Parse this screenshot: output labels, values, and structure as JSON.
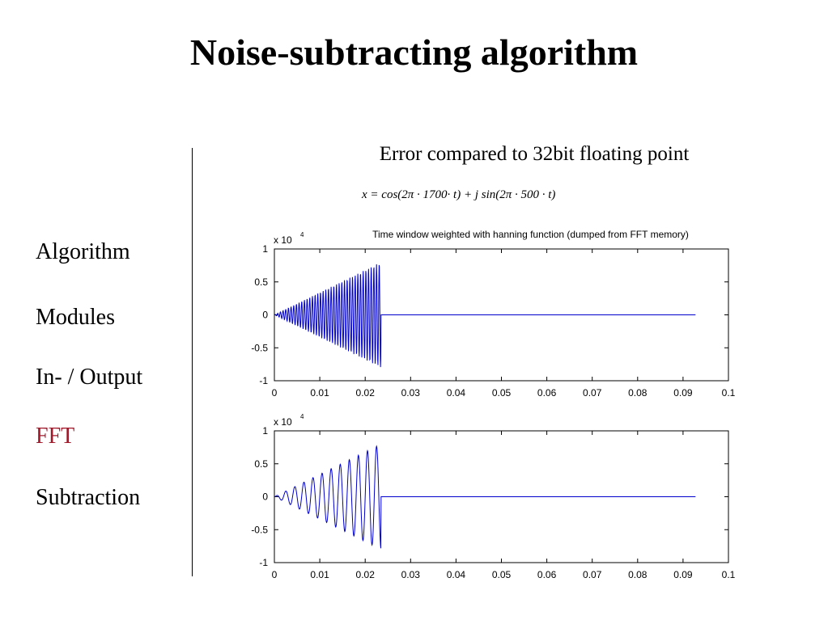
{
  "slide": {
    "title": "Noise-subtracting algorithm",
    "subtitle": "Error compared to 32bit floating point",
    "formula": "x = cos(2π · 1700· t) + j sin(2π · 500 · t)"
  },
  "nav": {
    "items": [
      {
        "label": "Algorithm",
        "active": false
      },
      {
        "label": "Modules",
        "active": false
      },
      {
        "label": "In- / Output",
        "active": false
      },
      {
        "label": "FFT",
        "active": true
      },
      {
        "label": "Subtraction",
        "active": false
      }
    ],
    "active_color": "#a0192a"
  },
  "chart_data": [
    {
      "type": "line",
      "title": "Time window weighted with hanning function (dumped from FFT memory)",
      "scale_label": "x 10",
      "scale_exponent": "4",
      "xlim": [
        0,
        0.1
      ],
      "ylim": [
        -1,
        1
      ],
      "xticks": [
        "0",
        "0.01",
        "0.02",
        "0.03",
        "0.04",
        "0.05",
        "0.06",
        "0.07",
        "0.08",
        "0.09",
        "0.1"
      ],
      "yticks": [
        "1",
        "0.5",
        "0",
        "-0.5",
        "-1"
      ],
      "series": [
        {
          "color": "#0000cc",
          "signal": {
            "frequency": 1700,
            "peak": 0.8,
            "envelope": "linear",
            "active_until": 0.0235,
            "sample_step": 6.25e-05,
            "end": 0.0928
          }
        }
      ]
    },
    {
      "type": "line",
      "title": "",
      "scale_label": "x 10",
      "scale_exponent": "4",
      "xlim": [
        0,
        0.1
      ],
      "ylim": [
        -1,
        1
      ],
      "xticks": [
        "0",
        "0.01",
        "0.02",
        "0.03",
        "0.04",
        "0.05",
        "0.06",
        "0.07",
        "0.08",
        "0.09",
        "0.1"
      ],
      "yticks": [
        "1",
        "0.5",
        "0",
        "-0.5",
        "-1"
      ],
      "series": [
        {
          "color": "#0000cc",
          "signal": {
            "frequency": 500,
            "peak": 0.8,
            "envelope": "linear",
            "active_until": 0.0235,
            "sample_step": 6.25e-05,
            "end": 0.0928
          }
        }
      ]
    }
  ]
}
